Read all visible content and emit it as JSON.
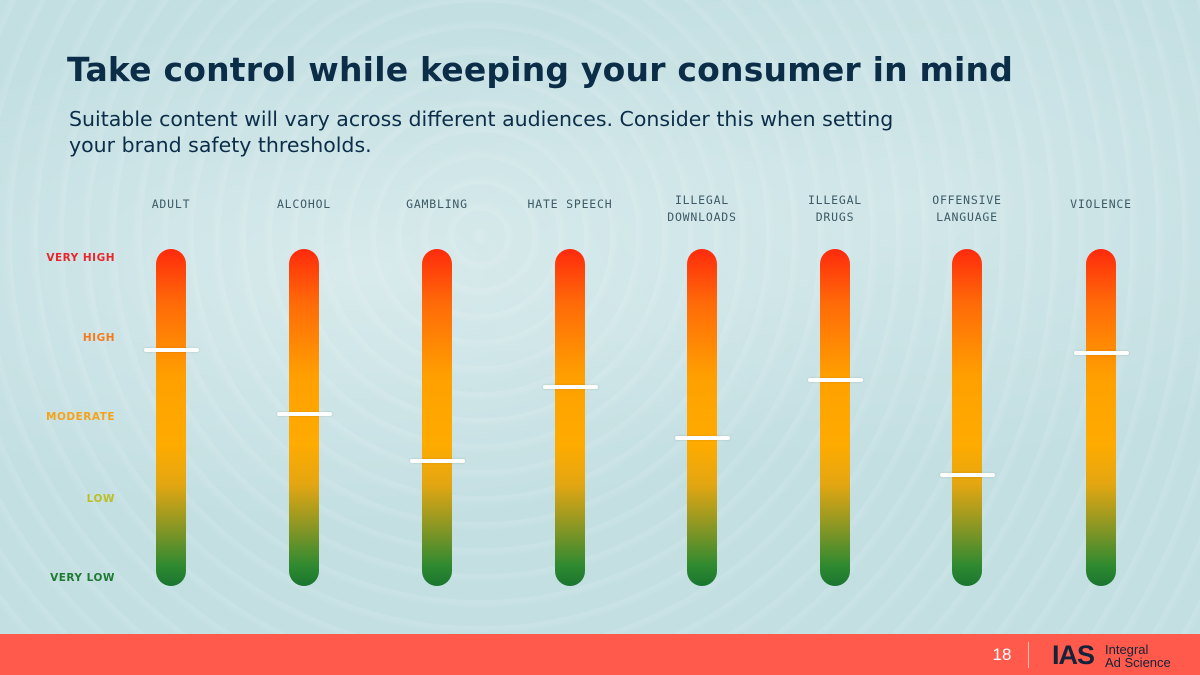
{
  "title": "Take control while keeping your consumer in mind",
  "subtitle_lines": [
    "Suitable content will vary across different audiences. Consider this when setting",
    "your brand safety thresholds."
  ],
  "levels": [
    {
      "label": "VERY HIGH",
      "color": "#e8262b"
    },
    {
      "label": "HIGH",
      "color": "#f57a1c"
    },
    {
      "label": "MODERATE",
      "color": "#f5a31a"
    },
    {
      "label": "LOW",
      "color": "#bcbf24"
    },
    {
      "label": "VERY LOW",
      "color": "#1f7a32"
    }
  ],
  "categories": [
    {
      "lines": [
        "ADULT"
      ],
      "setting": 0.7
    },
    {
      "lines": [
        "ALCOHOL"
      ],
      "setting": 0.51
    },
    {
      "lines": [
        "GAMBLING"
      ],
      "setting": 0.37
    },
    {
      "lines": [
        "HATE SPEECH"
      ],
      "setting": 0.59
    },
    {
      "lines": [
        "ILLEGAL",
        "DOWNLOADS"
      ],
      "setting": 0.44
    },
    {
      "lines": [
        "ILLEGAL",
        "DRUGS"
      ],
      "setting": 0.61
    },
    {
      "lines": [
        "OFFENSIVE",
        "LANGUAGE"
      ],
      "setting": 0.33
    },
    {
      "lines": [
        "VIOLENCE"
      ],
      "setting": 0.69
    }
  ],
  "footer": {
    "page_number": "18",
    "logo_mark": "IAS",
    "logo_text_lines": [
      "Integral",
      "Ad Science"
    ],
    "background_color": "#ff5a4b"
  }
}
